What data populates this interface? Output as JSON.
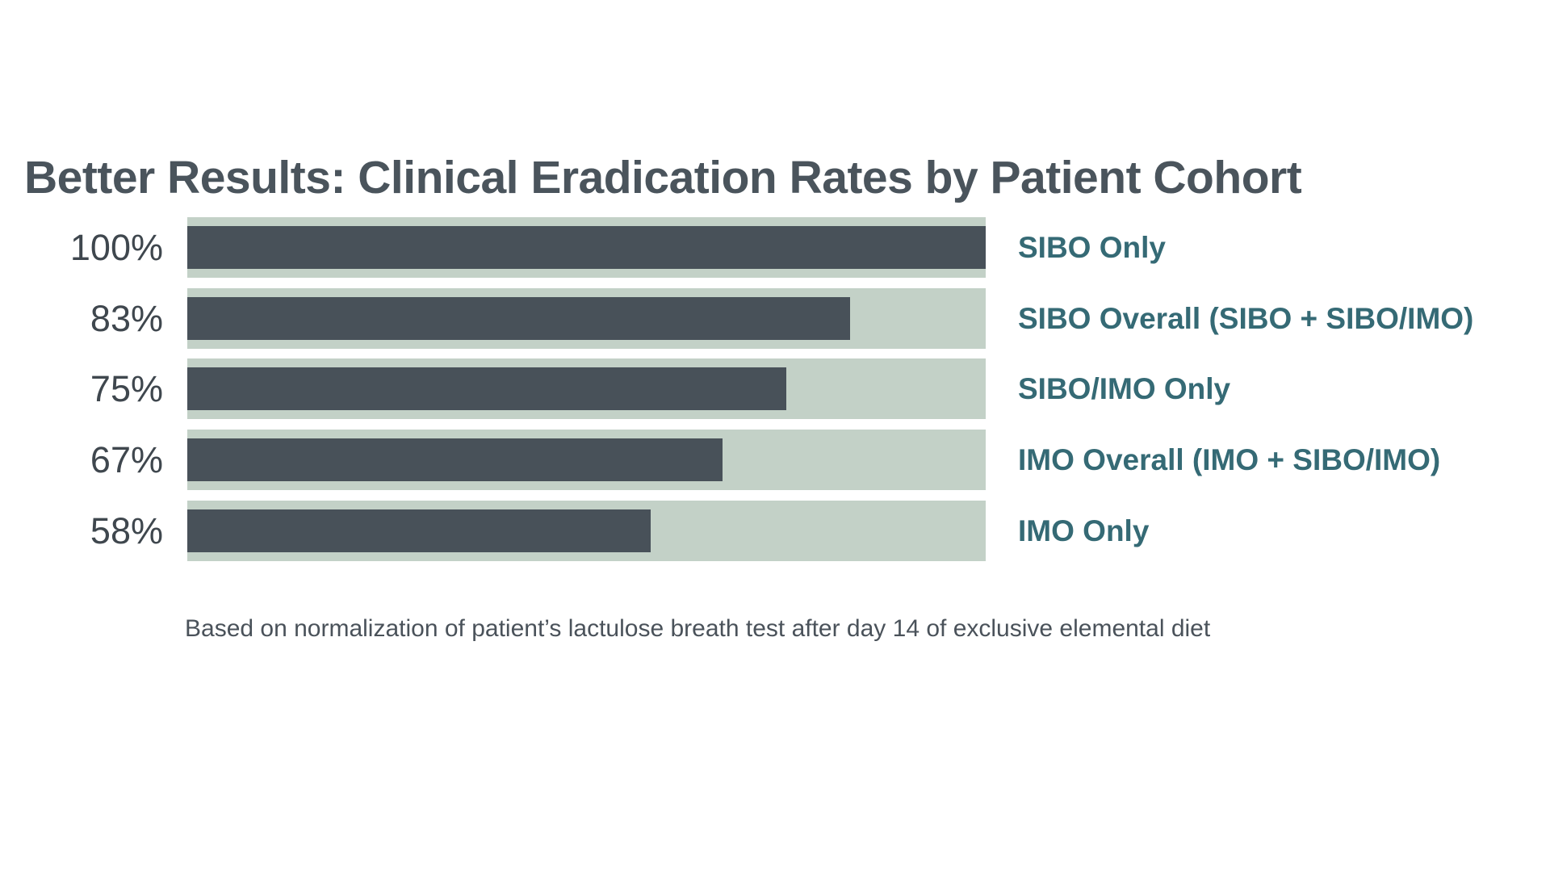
{
  "page": {
    "background": "#FFFFFF"
  },
  "header": {
    "title": "Better Results: Clinical Eradication Rates by Patient Cohort"
  },
  "footnote": {
    "text": "Based on normalization of patient’s lactulose breath test after day 14 of exclusive elemental diet"
  },
  "colors": {
    "title_text": "#4A545C",
    "value_label": "#3F474E",
    "category_label": "#356A75",
    "bar_fill": "#485159",
    "bar_track": "#C3D1C7",
    "footnote_text": "#4A525A",
    "background": "#FFFFFF"
  },
  "chart_data": {
    "type": "bar",
    "orientation": "horizontal",
    "title": "Better Results: Clinical Eradication Rates by Patient Cohort",
    "categories": [
      "SIBO Only",
      "SIBO Overall (SIBO + SIBO/IMO)",
      "SIBO/IMO Only",
      "IMO Overall (IMO + SIBO/IMO)",
      "IMO Only"
    ],
    "values": [
      100,
      83,
      75,
      67,
      58
    ],
    "value_labels": [
      "100%",
      "83%",
      "75%",
      "67%",
      "58%"
    ],
    "xlim": [
      0,
      100
    ],
    "grid": false,
    "legend": false,
    "value_label_position": "left-of-bar",
    "category_label_position": "right-of-bar",
    "footnote": "Based on normalization of patient’s lactulose breath test after day 14 of exclusive elemental diet"
  }
}
